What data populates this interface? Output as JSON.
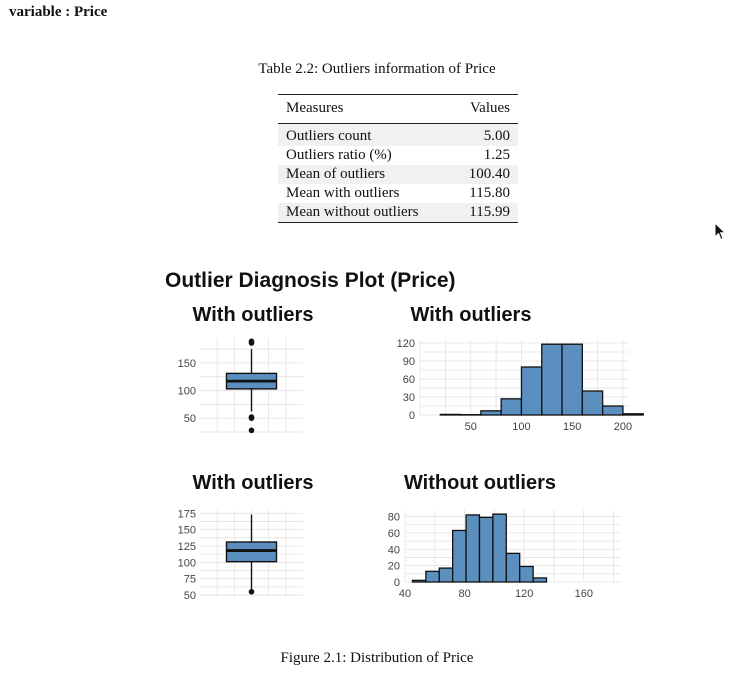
{
  "heading": "variable : Price",
  "table": {
    "caption": "Table 2.2: Outliers information of Price",
    "headers": [
      "Measures",
      "Values"
    ],
    "rows": [
      [
        "Outliers count",
        "5.00"
      ],
      [
        "Outliers ratio (%)",
        "1.25"
      ],
      [
        "Mean of outliers",
        "100.40"
      ],
      [
        "Mean with outliers",
        "115.80"
      ],
      [
        "Mean without outliers",
        "115.99"
      ]
    ]
  },
  "figure": {
    "title": "Outlier Diagnosis Plot (Price)",
    "caption": "Figure 2.1: Distribution of Price",
    "colors": {
      "fill": "#5b8fc0",
      "stroke": "#111111",
      "grid": "#e2e2e2"
    }
  },
  "chart_data": [
    {
      "type": "boxplot",
      "title": "With outliers",
      "ylim": [
        25,
        195
      ],
      "yticks": [
        50,
        100,
        150
      ],
      "box": {
        "whisker_low": 62,
        "q1": 103,
        "median": 117,
        "q3": 131,
        "whisker_high": 175
      },
      "outliers": [
        28,
        50,
        52,
        186,
        189
      ]
    },
    {
      "type": "histogram",
      "title": "With outliers",
      "xlim": [
        0,
        205
      ],
      "ylim": [
        0,
        125
      ],
      "xticks": [
        50,
        100,
        150,
        200
      ],
      "yticks": [
        0,
        30,
        60,
        90,
        120
      ],
      "bins": [
        {
          "x0": 20,
          "x1": 40,
          "count": 1
        },
        {
          "x0": 40,
          "x1": 60,
          "count": 0
        },
        {
          "x0": 60,
          "x1": 80,
          "count": 7
        },
        {
          "x0": 80,
          "x1": 100,
          "count": 27
        },
        {
          "x0": 100,
          "x1": 120,
          "count": 80
        },
        {
          "x0": 120,
          "x1": 140,
          "count": 118
        },
        {
          "x0": 140,
          "x1": 160,
          "count": 118
        },
        {
          "x0": 160,
          "x1": 180,
          "count": 40
        },
        {
          "x0": 180,
          "x1": 200,
          "count": 15
        },
        {
          "x0": 200,
          "x1": 220,
          "count": 2
        }
      ]
    },
    {
      "type": "boxplot",
      "title": "With outliers",
      "ylim": [
        47,
        180
      ],
      "yticks": [
        50,
        75,
        100,
        125,
        150,
        175
      ],
      "box": {
        "whisker_low": 55,
        "q1": 101,
        "median": 118,
        "q3": 131,
        "whisker_high": 173
      },
      "outliers": [
        55
      ]
    },
    {
      "type": "histogram",
      "title": "Without outliers",
      "xlim": [
        40,
        185
      ],
      "ylim": [
        0,
        88
      ],
      "xticks": [
        40,
        80,
        120,
        160
      ],
      "yticks": [
        0,
        20,
        40,
        60,
        80
      ],
      "bins": [
        {
          "x0": 45,
          "x1": 54,
          "count": 2
        },
        {
          "x0": 54,
          "x1": 63,
          "count": 13
        },
        {
          "x0": 63,
          "x1": 72,
          "count": 17
        },
        {
          "x0": 72,
          "x1": 81,
          "count": 63
        },
        {
          "x0": 81,
          "x1": 90,
          "count": 82
        },
        {
          "x0": 90,
          "x1": 99,
          "count": 79
        },
        {
          "x0": 99,
          "x1": 108,
          "count": 83
        },
        {
          "x0": 108,
          "x1": 117,
          "count": 35
        },
        {
          "x0": 117,
          "x1": 126,
          "count": 19
        },
        {
          "x0": 126,
          "x1": 135,
          "count": 5
        }
      ]
    }
  ]
}
